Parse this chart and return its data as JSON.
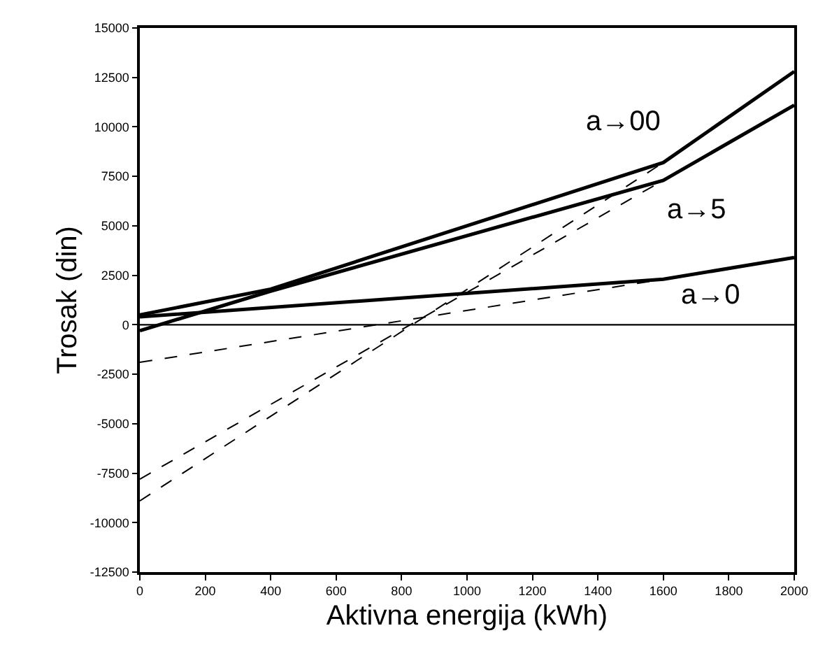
{
  "chart_data": {
    "type": "line",
    "xlabel": "Aktivna energija (kWh)",
    "ylabel": "Trosak (din)",
    "xlim": [
      0,
      2000
    ],
    "xticks": [
      0,
      200,
      400,
      600,
      800,
      1000,
      1200,
      1400,
      1600,
      1800,
      2000
    ],
    "ylim": [
      -12500,
      15000
    ],
    "yticks": [
      -12500,
      -10000,
      -7500,
      -5000,
      -2500,
      0,
      2500,
      5000,
      7500,
      10000,
      12500,
      15000
    ],
    "marker": "none",
    "series": [
      {
        "color": "#000000",
        "line_style": "solid",
        "x": [
          0,
          400,
          1600,
          2000
        ],
        "values": [
          500,
          1800,
          8200,
          12800
        ]
      },
      {
        "color": "#000000",
        "line_style": "solid",
        "x": [
          0,
          400,
          1600,
          2000
        ],
        "values": [
          -300,
          1700,
          7300,
          11100
        ]
      },
      {
        "color": "#000000",
        "line_style": "solid",
        "x": [
          0,
          1600,
          2000
        ],
        "values": [
          400,
          2300,
          3400
        ]
      },
      {
        "color": "#000000",
        "line_style": "dashed",
        "x": [
          0,
          1600
        ],
        "values": [
          -1900,
          2300
        ]
      },
      {
        "color": "#000000",
        "line_style": "dashed",
        "x": [
          0,
          1600
        ],
        "values": [
          -8900,
          8200
        ]
      },
      {
        "color": "#000000",
        "line_style": "dashed",
        "x": [
          0,
          1600
        ],
        "values": [
          -7800,
          7300
        ]
      }
    ],
    "ref_lines": [
      {
        "axis": "y",
        "value": 0,
        "color": "#000000",
        "line_style": "solid"
      }
    ],
    "annotations": [
      "a→00",
      "a→5",
      "a→0"
    ]
  }
}
